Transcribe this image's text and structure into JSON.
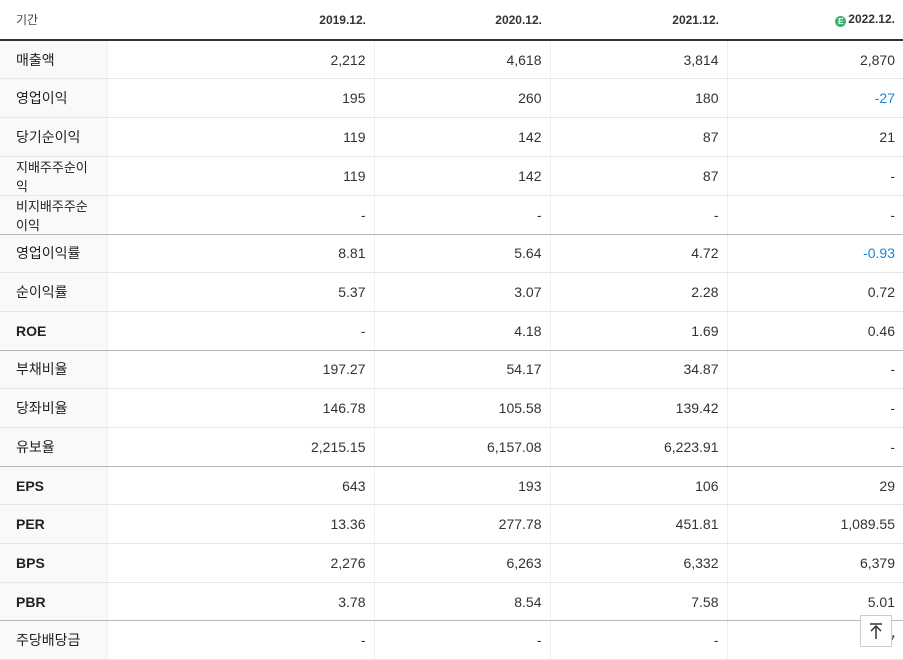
{
  "header": {
    "period_label": "기간",
    "estimate_icon": "E",
    "years": [
      "2019.12.",
      "2020.12.",
      "2021.12.",
      "2022.12."
    ]
  },
  "rows": [
    {
      "label": "매출액",
      "values": [
        "2,212",
        "4,618",
        "3,814",
        "2,870"
      ]
    },
    {
      "label": "영업이익",
      "values": [
        "195",
        "260",
        "180",
        "-27"
      ]
    },
    {
      "label": "당기순이익",
      "values": [
        "119",
        "142",
        "87",
        "21"
      ]
    },
    {
      "label": "지배주주순이익",
      "values": [
        "119",
        "142",
        "87",
        "-"
      ]
    },
    {
      "label": "비지배주주순이익",
      "values": [
        "-",
        "-",
        "-",
        "-"
      ]
    },
    {
      "label": "영업이익률",
      "values": [
        "8.81",
        "5.64",
        "4.72",
        "-0.93"
      ]
    },
    {
      "label": "순이익률",
      "values": [
        "5.37",
        "3.07",
        "2.28",
        "0.72"
      ]
    },
    {
      "label": "ROE",
      "values": [
        "-",
        "4.18",
        "1.69",
        "0.46"
      ]
    },
    {
      "label": "부채비율",
      "values": [
        "197.27",
        "54.17",
        "34.87",
        "-"
      ]
    },
    {
      "label": "당좌비율",
      "values": [
        "146.78",
        "105.58",
        "139.42",
        "-"
      ]
    },
    {
      "label": "유보율",
      "values": [
        "2,215.15",
        "6,157.08",
        "6,223.91",
        "-"
      ]
    },
    {
      "label": "EPS",
      "values": [
        "643",
        "193",
        "106",
        "29"
      ]
    },
    {
      "label": "PER",
      "values": [
        "13.36",
        "277.78",
        "451.81",
        "1,089.55"
      ]
    },
    {
      "label": "BPS",
      "values": [
        "2,276",
        "6,263",
        "6,332",
        "6,379"
      ]
    },
    {
      "label": "PBR",
      "values": [
        "3.78",
        "8.54",
        "7.58",
        "5.01"
      ]
    },
    {
      "label": "주당배당금",
      "values": [
        "-",
        "-",
        "-",
        "7"
      ]
    }
  ],
  "colors": {
    "negative": "#1c86d9",
    "estimate_badge": "#3cb371"
  },
  "scroll_top_button": {
    "icon": "arrow-up-icon"
  }
}
